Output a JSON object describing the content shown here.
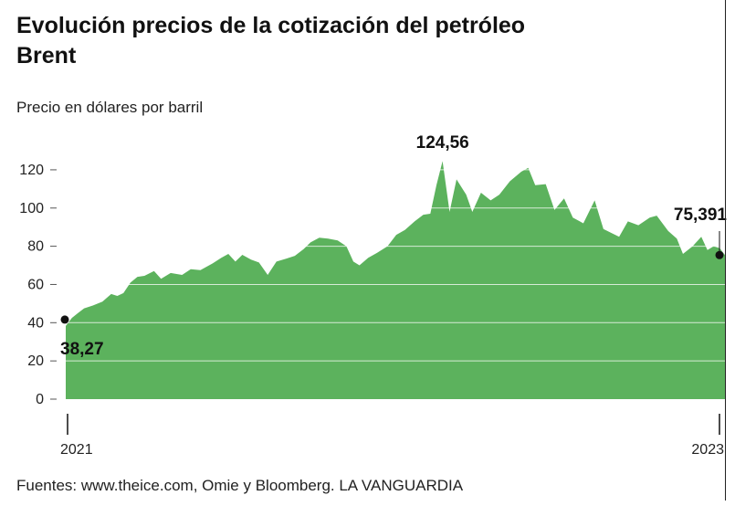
{
  "chart_data": {
    "type": "area",
    "title": "Evolución precios de la cotización del petróleo Brent",
    "subtitle": "Precio en dólares por barril",
    "source": "Fuentes: www.theice.com, Omie y Bloomberg. LA VANGUARDIA",
    "color": "#5cb25d",
    "grid": true,
    "ylim": [
      0,
      130
    ],
    "yticks": [
      0,
      20,
      40,
      60,
      80,
      100,
      120
    ],
    "xlim": [
      "2021-01-01",
      "2023-01-25"
    ],
    "xaxis_labels": [
      {
        "date": "2021-01-01",
        "label": "2021"
      },
      {
        "date": "2023-01-25",
        "label": "2023"
      }
    ],
    "annotations": [
      {
        "date": "2021-01-01",
        "value": 38.27,
        "label": "38,27",
        "marker": true
      },
      {
        "date": "2022-03-08",
        "value": 124.56,
        "label": "124,56",
        "marker": false
      },
      {
        "date": "2023-01-25",
        "value": 75.391,
        "label": "75,391",
        "marker": true
      }
    ],
    "series": [
      {
        "points": [
          [
            "2021-01-01",
            38.3
          ],
          [
            "2021-01-08",
            42.5
          ],
          [
            "2021-01-15",
            45.0
          ],
          [
            "2021-01-22",
            47.5
          ],
          [
            "2021-02-01",
            49.0
          ],
          [
            "2021-02-12",
            51.0
          ],
          [
            "2021-02-22",
            55.0
          ],
          [
            "2021-03-01",
            54.0
          ],
          [
            "2021-03-08",
            55.5
          ],
          [
            "2021-03-16",
            61.0
          ],
          [
            "2021-03-24",
            64.0
          ],
          [
            "2021-04-01",
            64.5
          ],
          [
            "2021-04-12",
            67.0
          ],
          [
            "2021-04-20",
            63.0
          ],
          [
            "2021-05-01",
            66.0
          ],
          [
            "2021-05-14",
            65.0
          ],
          [
            "2021-05-24",
            68.0
          ],
          [
            "2021-06-04",
            67.5
          ],
          [
            "2021-06-18",
            71.0
          ],
          [
            "2021-06-28",
            74.0
          ],
          [
            "2021-07-06",
            76.0
          ],
          [
            "2021-07-14",
            72.0
          ],
          [
            "2021-07-22",
            75.5
          ],
          [
            "2021-08-01",
            73.0
          ],
          [
            "2021-08-10",
            71.5
          ],
          [
            "2021-08-20",
            65.0
          ],
          [
            "2021-08-30",
            72.0
          ],
          [
            "2021-09-10",
            73.5
          ],
          [
            "2021-09-20",
            75.0
          ],
          [
            "2021-09-30",
            78.5
          ],
          [
            "2021-10-08",
            82.0
          ],
          [
            "2021-10-18",
            84.5
          ],
          [
            "2021-10-28",
            84.0
          ],
          [
            "2021-11-08",
            83.0
          ],
          [
            "2021-11-18",
            80.0
          ],
          [
            "2021-11-26",
            72.0
          ],
          [
            "2021-12-03",
            70.0
          ],
          [
            "2021-12-13",
            74.0
          ],
          [
            "2021-12-23",
            76.5
          ],
          [
            "2022-01-04",
            80.0
          ],
          [
            "2022-01-14",
            86.0
          ],
          [
            "2022-01-24",
            88.5
          ],
          [
            "2022-02-04",
            93.0
          ],
          [
            "2022-02-14",
            96.5
          ],
          [
            "2022-02-22",
            97.0
          ],
          [
            "2022-03-01",
            112.0
          ],
          [
            "2022-03-08",
            124.56
          ],
          [
            "2022-03-16",
            98.0
          ],
          [
            "2022-03-24",
            115.0
          ],
          [
            "2022-04-04",
            107.0
          ],
          [
            "2022-04-11",
            98.0
          ],
          [
            "2022-04-21",
            108.0
          ],
          [
            "2022-05-02",
            104.0
          ],
          [
            "2022-05-12",
            107.0
          ],
          [
            "2022-05-24",
            114.0
          ],
          [
            "2022-06-06",
            119.0
          ],
          [
            "2022-06-14",
            121.0
          ],
          [
            "2022-06-22",
            112.0
          ],
          [
            "2022-07-04",
            112.5
          ],
          [
            "2022-07-14",
            99.0
          ],
          [
            "2022-07-25",
            105.0
          ],
          [
            "2022-08-04",
            95.0
          ],
          [
            "2022-08-16",
            92.0
          ],
          [
            "2022-08-29",
            104.0
          ],
          [
            "2022-09-08",
            89.0
          ],
          [
            "2022-09-26",
            85.0
          ],
          [
            "2022-10-06",
            93.0
          ],
          [
            "2022-10-18",
            91.0
          ],
          [
            "2022-10-31",
            95.0
          ],
          [
            "2022-11-08",
            96.0
          ],
          [
            "2022-11-21",
            88.0
          ],
          [
            "2022-12-01",
            84.0
          ],
          [
            "2022-12-08",
            76.0
          ],
          [
            "2022-12-19",
            80.0
          ],
          [
            "2022-12-29",
            85.0
          ],
          [
            "2023-01-05",
            78.0
          ],
          [
            "2023-01-12",
            80.0
          ],
          [
            "2023-01-19",
            79.0
          ],
          [
            "2023-01-25",
            75.391
          ]
        ]
      }
    ]
  }
}
